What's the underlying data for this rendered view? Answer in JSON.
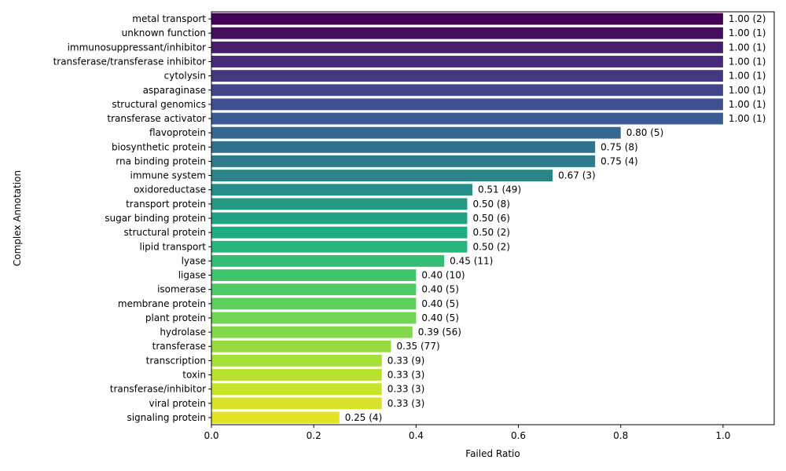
{
  "chart_data": {
    "type": "bar",
    "orientation": "horizontal",
    "xlabel": "Failed Ratio",
    "ylabel": "Complex Annotation",
    "xlim": [
      0,
      1.1
    ],
    "xticks": [
      0.0,
      0.2,
      0.4,
      0.6,
      0.8,
      1.0
    ],
    "xtick_labels": [
      "0.0",
      "0.2",
      "0.4",
      "0.6",
      "0.8",
      "1.0"
    ],
    "colormap": "viridis",
    "categories": [
      "metal transport",
      "unknown function",
      "immunosuppressant/inhibitor",
      "transferase/transferase inhibitor",
      "cytolysin",
      "asparaginase",
      "structural genomics",
      "transferase activator",
      "flavoprotein",
      "biosynthetic protein",
      "rna binding protein",
      "immune system",
      "oxidoreductase",
      "transport protein",
      "sugar binding protein",
      "structural protein",
      "lipid transport",
      "lyase",
      "ligase",
      "isomerase",
      "membrane protein",
      "plant protein",
      "hydrolase",
      "transferase",
      "transcription",
      "toxin",
      "transferase/inhibitor",
      "viral protein",
      "signaling protein"
    ],
    "values": [
      1.0,
      1.0,
      1.0,
      1.0,
      1.0,
      1.0,
      1.0,
      1.0,
      0.8,
      0.75,
      0.75,
      0.667,
      0.51,
      0.5,
      0.5,
      0.5,
      0.5,
      0.455,
      0.4,
      0.4,
      0.4,
      0.4,
      0.393,
      0.351,
      0.333,
      0.333,
      0.333,
      0.333,
      0.25
    ],
    "labels": [
      "1.00 (2)",
      "1.00 (1)",
      "1.00 (1)",
      "1.00 (1)",
      "1.00 (1)",
      "1.00 (1)",
      "1.00 (1)",
      "1.00 (1)",
      "0.80 (5)",
      "0.75 (8)",
      "0.75 (4)",
      "0.67 (3)",
      "0.51 (49)",
      "0.50 (8)",
      "0.50 (6)",
      "0.50 (2)",
      "0.50 (2)",
      "0.45 (11)",
      "0.40 (10)",
      "0.40 (5)",
      "0.40 (5)",
      "0.40 (5)",
      "0.39 (56)",
      "0.35 (77)",
      "0.33 (9)",
      "0.33 (3)",
      "0.33 (3)",
      "0.33 (3)",
      "0.25 (4)"
    ],
    "colors": [
      "#440154",
      "#450f60",
      "#471e6c",
      "#472a79",
      "#453883",
      "#42458b",
      "#3e5090",
      "#3b5b92",
      "#366791",
      "#32718e",
      "#2e7b8c",
      "#2a8589",
      "#268e87",
      "#239986",
      "#21a284",
      "#20ac80",
      "#28b57c",
      "#34be74",
      "#3fc56b",
      "#4fca67",
      "#5fd05e",
      "#71d455",
      "#83d84a",
      "#95db40",
      "#a6de3a",
      "#b8e02f",
      "#c8e32c",
      "#d6e328",
      "#e3e324"
    ]
  }
}
